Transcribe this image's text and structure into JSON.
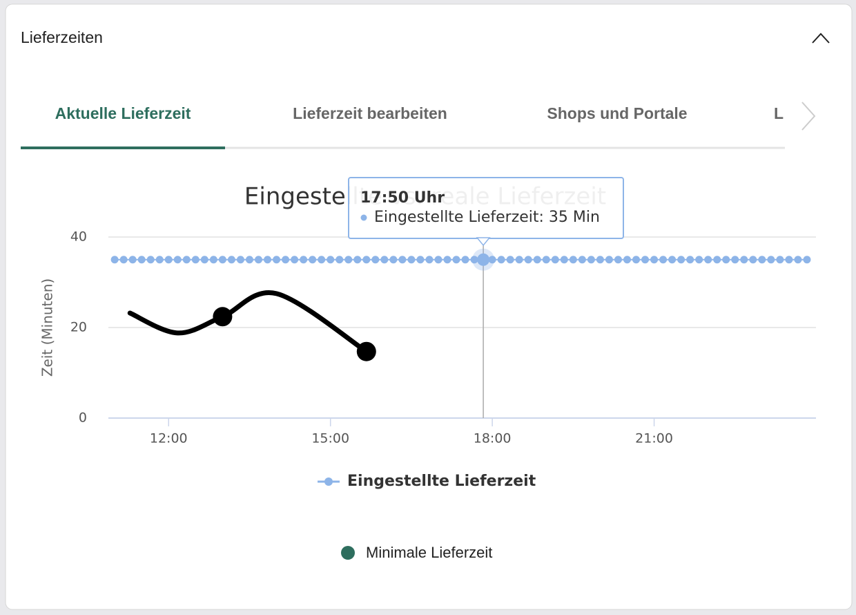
{
  "header": {
    "title": "Lieferzeiten"
  },
  "tabs": [
    "Aktuelle Lieferzeit",
    "Lieferzeit bearbeiten",
    "Shops und Portale",
    "L"
  ],
  "chart_data": {
    "type": "line",
    "title": "Eingestellte vs. reale Lieferzeit",
    "y_label": "Zeit (Minuten)",
    "xlim": [
      653,
      1440
    ],
    "xticks": [
      {
        "value": 720,
        "label": "12:00"
      },
      {
        "value": 900,
        "label": "15:00"
      },
      {
        "value": 1080,
        "label": "18:00"
      },
      {
        "value": 1260,
        "label": "21:00"
      }
    ],
    "ylim": [
      0,
      40
    ],
    "yticks": [
      0,
      20,
      40
    ],
    "grid": true,
    "series": [
      {
        "name": "Eingestellte Lieferzeit",
        "color": "#8db4e8",
        "x": [
          660,
          670,
          680,
          690,
          700,
          710,
          720,
          730,
          740,
          750,
          760,
          770,
          780,
          790,
          800,
          810,
          820,
          830,
          840,
          850,
          860,
          870,
          880,
          890,
          900,
          910,
          920,
          930,
          940,
          950,
          960,
          970,
          980,
          990,
          1000,
          1010,
          1020,
          1030,
          1040,
          1050,
          1060,
          1070,
          1080,
          1090,
          1100,
          1110,
          1120,
          1130,
          1140,
          1150,
          1160,
          1170,
          1180,
          1190,
          1200,
          1210,
          1220,
          1230,
          1240,
          1250,
          1260,
          1270,
          1280,
          1290,
          1300,
          1310,
          1320,
          1330,
          1340,
          1350,
          1360,
          1370,
          1380,
          1390,
          1400,
          1410,
          1420,
          1430
        ],
        "values": [
          35,
          35,
          35,
          35,
          35,
          35,
          35,
          35,
          35,
          35,
          35,
          35,
          35,
          35,
          35,
          35,
          35,
          35,
          35,
          35,
          35,
          35,
          35,
          35,
          35,
          35,
          35,
          35,
          35,
          35,
          35,
          35,
          35,
          35,
          35,
          35,
          35,
          35,
          35,
          35,
          35,
          35,
          35,
          35,
          35,
          35,
          35,
          35,
          35,
          35,
          35,
          35,
          35,
          35,
          35,
          35,
          35,
          35,
          35,
          35,
          35,
          35,
          35,
          35,
          35,
          35,
          35,
          35,
          35,
          35,
          35,
          35,
          35,
          35,
          35,
          35,
          35,
          35
        ]
      },
      {
        "color": "#000000",
        "x": [
          677,
          730,
          780,
          840,
          940
        ],
        "values": [
          23.2,
          18.8,
          22.4,
          27.5,
          14.7
        ],
        "markers": [
          false,
          false,
          true,
          false,
          true
        ]
      }
    ],
    "tooltip": {
      "x": 1070,
      "time": "17:50 Uhr",
      "text": "Eingestellte Lieferzeit: 35 Min"
    },
    "secondary_legend": {
      "label": "Minimale Lieferzeit",
      "color": "#2e6e5e"
    }
  }
}
